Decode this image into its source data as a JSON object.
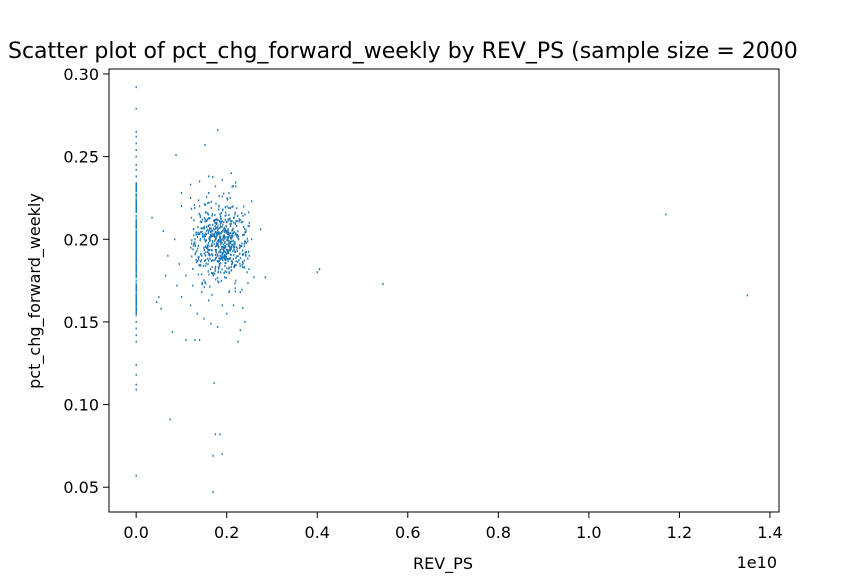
{
  "chart_data": {
    "type": "scatter",
    "title": "Scatter plot of pct_chg_forward_weekly by REV_PS (sample size = 2000",
    "xlabel": "REV_PS",
    "ylabel": "pct_chg_forward_weekly",
    "x_offset_label": "1e10",
    "xlim": [
      -0.06,
      1.42
    ],
    "ylim": [
      0.035,
      0.303
    ],
    "x_ticks": [
      0.0,
      0.2,
      0.4,
      0.6,
      0.8,
      1.0,
      1.2,
      1.4
    ],
    "x_tick_labels": [
      "0.0",
      "0.2",
      "0.4",
      "0.6",
      "0.8",
      "1.0",
      "1.2",
      "1.4"
    ],
    "y_ticks": [
      0.05,
      0.1,
      0.15,
      0.2,
      0.25,
      0.3
    ],
    "y_tick_labels": [
      "0.05",
      "0.10",
      "0.15",
      "0.20",
      "0.25",
      "0.30"
    ],
    "marker_color": "#1f77b4",
    "grid": false,
    "legend": "none",
    "series": [
      {
        "points": [
          [
            0.0,
            0.292
          ],
          [
            0.0,
            0.279
          ],
          [
            0.0,
            0.265
          ],
          [
            0.0,
            0.262
          ],
          [
            0.0,
            0.258
          ],
          [
            0.0,
            0.254
          ],
          [
            0.0,
            0.25
          ],
          [
            0.0,
            0.245
          ],
          [
            0.0,
            0.242
          ],
          [
            0.0,
            0.238
          ],
          [
            0.0,
            0.234
          ],
          [
            0.0,
            0.232
          ],
          [
            0.0,
            0.229
          ],
          [
            0.0,
            0.226
          ],
          [
            0.0,
            0.223
          ],
          [
            0.0,
            0.22
          ],
          [
            0.0,
            0.217
          ],
          [
            0.0,
            0.214
          ],
          [
            0.0,
            0.211
          ],
          [
            0.0,
            0.208
          ],
          [
            0.0,
            0.205
          ],
          [
            0.0,
            0.202
          ],
          [
            0.0,
            0.199
          ],
          [
            0.0,
            0.196
          ],
          [
            0.0,
            0.193
          ],
          [
            0.0,
            0.19
          ],
          [
            0.0,
            0.187
          ],
          [
            0.0,
            0.184
          ],
          [
            0.0,
            0.181
          ],
          [
            0.0,
            0.178
          ],
          [
            0.0,
            0.175
          ],
          [
            0.0,
            0.172
          ],
          [
            0.0,
            0.169
          ],
          [
            0.0,
            0.166
          ],
          [
            0.0,
            0.163
          ],
          [
            0.0,
            0.16
          ],
          [
            0.0,
            0.157
          ],
          [
            0.0,
            0.154
          ],
          [
            0.0,
            0.15
          ],
          [
            0.0,
            0.146
          ],
          [
            0.0,
            0.142
          ],
          [
            0.0,
            0.138
          ],
          [
            0.0,
            0.124
          ],
          [
            0.0,
            0.118
          ],
          [
            0.0,
            0.112
          ],
          [
            0.0,
            0.109
          ],
          [
            0.0,
            0.057
          ],
          [
            0.075,
            0.091
          ],
          [
            0.17,
            0.047
          ],
          [
            0.172,
            0.113
          ],
          [
            0.175,
            0.082
          ],
          [
            0.185,
            0.082
          ],
          [
            0.17,
            0.069
          ],
          [
            0.19,
            0.07
          ],
          [
            0.275,
            0.206
          ],
          [
            0.285,
            0.177
          ],
          [
            0.4,
            0.18
          ],
          [
            0.405,
            0.182
          ],
          [
            0.545,
            0.173
          ],
          [
            1.17,
            0.215
          ],
          [
            1.35,
            0.166
          ],
          [
            0.18,
            0.266
          ],
          [
            0.152,
            0.257
          ],
          [
            0.088,
            0.251
          ],
          [
            0.035,
            0.213
          ],
          [
            0.05,
            0.165
          ],
          [
            0.045,
            0.162
          ],
          [
            0.055,
            0.158
          ],
          [
            0.08,
            0.144
          ],
          [
            0.11,
            0.139
          ],
          [
            0.13,
            0.139
          ],
          [
            0.14,
            0.139
          ],
          [
            0.225,
            0.138
          ],
          [
            0.23,
            0.145
          ],
          [
            0.24,
            0.15
          ],
          [
            0.26,
            0.177
          ],
          [
            0.21,
            0.24
          ],
          [
            0.16,
            0.238
          ],
          [
            0.14,
            0.235
          ],
          [
            0.12,
            0.233
          ],
          [
            0.1,
            0.228
          ],
          [
            0.255,
            0.223
          ],
          [
            0.24,
            0.215
          ],
          [
            0.06,
            0.205
          ],
          [
            0.07,
            0.19
          ],
          [
            0.065,
            0.178
          ],
          [
            0.09,
            0.172
          ],
          [
            0.1,
            0.165
          ],
          [
            0.12,
            0.16
          ],
          [
            0.135,
            0.155
          ],
          [
            0.15,
            0.152
          ],
          [
            0.165,
            0.149
          ],
          [
            0.18,
            0.147
          ],
          [
            0.2,
            0.155
          ],
          [
            0.215,
            0.16
          ],
          [
            0.23,
            0.168
          ],
          [
            0.245,
            0.18
          ],
          [
            0.25,
            0.19
          ],
          [
            0.255,
            0.2
          ],
          [
            0.25,
            0.21
          ],
          [
            0.1,
            0.22
          ],
          [
            0.12,
            0.225
          ],
          [
            0.14,
            0.22
          ],
          [
            0.16,
            0.228
          ],
          [
            0.175,
            0.232
          ],
          [
            0.19,
            0.236
          ],
          [
            0.205,
            0.228
          ],
          [
            0.22,
            0.232
          ],
          [
            0.085,
            0.2
          ],
          [
            0.095,
            0.185
          ],
          [
            0.11,
            0.178
          ],
          [
            0.125,
            0.172
          ],
          [
            0.145,
            0.168
          ],
          [
            0.16,
            0.163
          ],
          [
            0.19,
            0.16
          ],
          [
            0.205,
            0.168
          ],
          [
            0.22,
            0.175
          ]
        ]
      }
    ]
  }
}
